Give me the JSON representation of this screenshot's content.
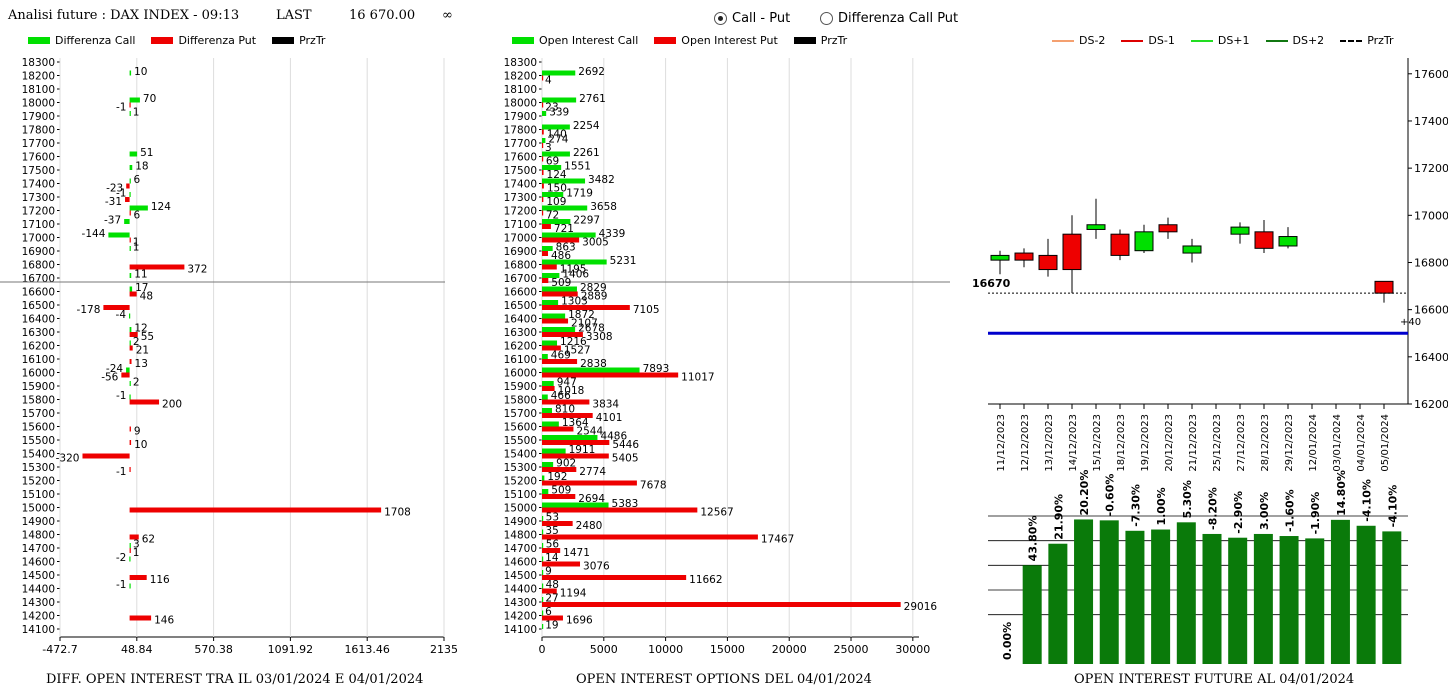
{
  "header": {
    "title": "Analisi future : DAX INDEX - 09:13",
    "last_label": "LAST",
    "last_value": "16 670.00",
    "infinity": "∞",
    "radio_call_put": "Call - Put",
    "radio_diff": "Differenza Call Put",
    "radio_selected": "call_put"
  },
  "colors": {
    "green": "#00e000",
    "red": "#ee0000",
    "dark_green": "#0a7a0a",
    "blue": "#0000cc"
  },
  "chart_data": [
    {
      "type": "bar",
      "orientation": "horizontal",
      "caption": "DIFF. OPEN INTEREST TRA IL 03/01/2024 E 04/01/2024",
      "legend": [
        "Differenza Call",
        "Differenza Put",
        "PrzTr"
      ],
      "xticks": [
        "-472.7",
        "48.84",
        "570.38",
        "1091.92",
        "1613.46",
        "2135"
      ],
      "xlim": [
        -472.7,
        2135
      ],
      "price_line": 16670,
      "strikes": [
        18300,
        18200,
        18100,
        18000,
        17900,
        17800,
        17700,
        17600,
        17500,
        17400,
        17300,
        17200,
        17100,
        17000,
        16900,
        16800,
        16700,
        16600,
        16500,
        16400,
        16300,
        16200,
        16100,
        16000,
        15900,
        15800,
        15700,
        15600,
        15500,
        15400,
        15300,
        15200,
        15100,
        15000,
        14900,
        14800,
        14700,
        14600,
        14500,
        14400,
        14300,
        14200,
        14100
      ],
      "call": [
        [
          18200,
          10
        ],
        [
          18000,
          70
        ],
        [
          17900,
          1
        ],
        [
          17600,
          51
        ],
        [
          17500,
          18
        ],
        [
          17400,
          6
        ],
        [
          17300,
          -1
        ],
        [
          17200,
          124
        ],
        [
          17100,
          -37
        ],
        [
          17000,
          -144
        ],
        [
          16900,
          1
        ],
        [
          16700,
          11
        ],
        [
          16600,
          17
        ],
        [
          16400,
          -4
        ],
        [
          16300,
          12
        ],
        [
          16200,
          2
        ],
        [
          16000,
          -24
        ],
        [
          15900,
          2
        ],
        [
          15800,
          -1
        ],
        [
          14700,
          3
        ],
        [
          14600,
          -2
        ],
        [
          14400,
          -1
        ]
      ],
      "put": [
        [
          18000,
          -1
        ],
        [
          17400,
          -23
        ],
        [
          17300,
          -31
        ],
        [
          17200,
          6
        ],
        [
          17000,
          1
        ],
        [
          16800,
          372
        ],
        [
          16600,
          48
        ],
        [
          16500,
          -178
        ],
        [
          16300,
          55
        ],
        [
          16200,
          21
        ],
        [
          16100,
          13
        ],
        [
          16000,
          -56
        ],
        [
          15800,
          200
        ],
        [
          15600,
          9
        ],
        [
          15500,
          10
        ],
        [
          15400,
          -320
        ],
        [
          15300,
          -1
        ],
        [
          15000,
          1708
        ],
        [
          14800,
          62
        ],
        [
          14700,
          1
        ],
        [
          14500,
          116
        ],
        [
          14200,
          146
        ]
      ]
    },
    {
      "type": "bar",
      "orientation": "horizontal",
      "caption": "OPEN INTEREST OPTIONS DEL 04/01/2024",
      "legend": [
        "Open Interest Call",
        "Open Interest Put",
        "PrzTr"
      ],
      "xticks": [
        "0",
        "5000",
        "10000",
        "15000",
        "20000",
        "25000",
        "30000"
      ],
      "xlim": [
        0,
        30500
      ],
      "price_line": 16670,
      "strikes": [
        18300,
        18200,
        18100,
        18000,
        17900,
        17800,
        17700,
        17600,
        17500,
        17400,
        17300,
        17200,
        17100,
        17000,
        16900,
        16800,
        16700,
        16600,
        16500,
        16400,
        16300,
        16200,
        16100,
        16000,
        15900,
        15800,
        15700,
        15600,
        15500,
        15400,
        15300,
        15200,
        15100,
        15000,
        14900,
        14800,
        14700,
        14600,
        14500,
        14400,
        14300,
        14200,
        14100
      ],
      "call": [
        [
          18200,
          2692
        ],
        [
          18000,
          2761
        ],
        [
          17900,
          339
        ],
        [
          17800,
          2254
        ],
        [
          17700,
          274
        ],
        [
          17600,
          2261
        ],
        [
          17500,
          1551
        ],
        [
          17400,
          3482
        ],
        [
          17300,
          1719
        ],
        [
          17200,
          3658
        ],
        [
          17100,
          2297
        ],
        [
          17000,
          4339
        ],
        [
          16900,
          863
        ],
        [
          16800,
          5231
        ],
        [
          16700,
          1406
        ],
        [
          16600,
          2829
        ],
        [
          16500,
          1303
        ],
        [
          16400,
          1872
        ],
        [
          16300,
          2678
        ],
        [
          16200,
          1216
        ],
        [
          16100,
          469
        ],
        [
          16000,
          7893
        ],
        [
          15900,
          947
        ],
        [
          15800,
          466
        ],
        [
          15700,
          810
        ],
        [
          15600,
          1364
        ],
        [
          15500,
          4486
        ],
        [
          15400,
          1911
        ],
        [
          15300,
          902
        ],
        [
          15200,
          192
        ],
        [
          15100,
          509
        ],
        [
          15000,
          5383
        ],
        [
          14900,
          53
        ],
        [
          14800,
          35
        ],
        [
          14700,
          56
        ],
        [
          14600,
          14
        ],
        [
          14500,
          9
        ],
        [
          14400,
          48
        ],
        [
          14300,
          27
        ],
        [
          14200,
          6
        ],
        [
          14100,
          19
        ]
      ],
      "put": [
        [
          18200,
          4
        ],
        [
          18000,
          23
        ],
        [
          17800,
          140
        ],
        [
          17700,
          3
        ],
        [
          17600,
          69
        ],
        [
          17500,
          124
        ],
        [
          17400,
          150
        ],
        [
          17300,
          109
        ],
        [
          17200,
          72
        ],
        [
          17100,
          721
        ],
        [
          17000,
          3005
        ],
        [
          16900,
          486
        ],
        [
          16800,
          1195
        ],
        [
          16700,
          509
        ],
        [
          16600,
          2889
        ],
        [
          16500,
          7105
        ],
        [
          16400,
          2107
        ],
        [
          16300,
          3308
        ],
        [
          16200,
          1527
        ],
        [
          16100,
          2838
        ],
        [
          16000,
          11017
        ],
        [
          15900,
          1018
        ],
        [
          15800,
          3834
        ],
        [
          15700,
          4101
        ],
        [
          15600,
          2544
        ],
        [
          15500,
          5446
        ],
        [
          15400,
          5405
        ],
        [
          15300,
          2774
        ],
        [
          15200,
          7678
        ],
        [
          15100,
          2694
        ],
        [
          15000,
          12567
        ],
        [
          14900,
          2480
        ],
        [
          14800,
          17467
        ],
        [
          14700,
          1471
        ],
        [
          14600,
          3076
        ],
        [
          14500,
          11662
        ],
        [
          14400,
          1194
        ],
        [
          14300,
          29016
        ],
        [
          14200,
          1696
        ]
      ]
    },
    {
      "type": "candlestick",
      "legend": [
        "DS-2",
        "DS-1",
        "DS+1",
        "DS+2",
        "PrzTr"
      ],
      "legend_colors": [
        "#f4a070",
        "#dd0000",
        "#22dd22",
        "#117711",
        "#000000"
      ],
      "yticks": [
        16200,
        16400,
        16600,
        16800,
        17000,
        17200,
        17400,
        17600
      ],
      "ylim": [
        16200,
        17650
      ],
      "price_label": "16670",
      "price": 16670,
      "blue_line": 16500,
      "diff_label": "+40",
      "candles": [
        {
          "date": "11/12/2023",
          "o": 16810,
          "c": 16830,
          "h": 16850,
          "l": 16750
        },
        {
          "date": "12/12/2023",
          "o": 16840,
          "c": 16810,
          "h": 16860,
          "l": 16780
        },
        {
          "date": "13/12/2023",
          "o": 16830,
          "c": 16770,
          "h": 16900,
          "l": 16740
        },
        {
          "date": "14/12/2023",
          "o": 16920,
          "c": 16770,
          "h": 17000,
          "l": 16670
        },
        {
          "date": "15/12/2023",
          "o": 16940,
          "c": 16960,
          "h": 17070,
          "l": 16900
        },
        {
          "date": "18/12/2023",
          "o": 16920,
          "c": 16830,
          "h": 16940,
          "l": 16810
        },
        {
          "date": "19/12/2023",
          "o": 16850,
          "c": 16930,
          "h": 16960,
          "l": 16840
        },
        {
          "date": "20/12/2023",
          "o": 16960,
          "c": 16930,
          "h": 16990,
          "l": 16900
        },
        {
          "date": "21/12/2023",
          "o": 16840,
          "c": 16870,
          "h": 16900,
          "l": 16800
        },
        {
          "date": "25/12/2023",
          "o": null,
          "c": null,
          "h": null,
          "l": null
        },
        {
          "date": "27/12/2023",
          "o": 16920,
          "c": 16950,
          "h": 16970,
          "l": 16880
        },
        {
          "date": "28/12/2023",
          "o": 16930,
          "c": 16860,
          "h": 16980,
          "l": 16840
        },
        {
          "date": "29/12/2023",
          "o": 16870,
          "c": 16910,
          "h": 16950,
          "l": 16860
        },
        {
          "date": "12/01/2024",
          "o": null,
          "c": null,
          "h": null,
          "l": null
        },
        {
          "date": "03/01/2024",
          "o": null,
          "c": null,
          "h": null,
          "l": null
        },
        {
          "date": "04/01/2024",
          "o": null,
          "c": null,
          "h": null,
          "l": null
        },
        {
          "date": "05/01/2024",
          "o": 16720,
          "c": 16670,
          "h": 16720,
          "l": 16630
        }
      ]
    },
    {
      "type": "bar",
      "caption": "OPEN INTEREST FUTURE AL 04/01/2024",
      "labels": [
        "0.00%",
        "43.80%",
        "21.90%",
        "20.20%",
        "-0.60%",
        "-7.30%",
        "1.00%",
        "5.30%",
        "-8.20%",
        "-2.90%",
        "3.00%",
        "-1.60%",
        "-1.90%",
        "14.80%",
        "-4.10%",
        "-4.10%"
      ],
      "values": [
        0,
        1.0,
        1.219,
        1.465,
        1.456,
        1.35,
        1.363,
        1.436,
        1.318,
        1.28,
        1.318,
        1.297,
        1.273,
        1.461,
        1.401,
        1.344
      ],
      "ylim": [
        0,
        1.5
      ]
    }
  ]
}
